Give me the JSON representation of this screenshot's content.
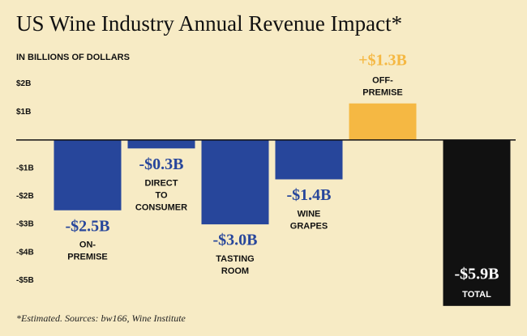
{
  "chart_data": {
    "type": "bar",
    "title": "US Wine Industry Annual Revenue Impact*",
    "subtitle": "IN BILLIONS OF DOLLARS",
    "footnote": "*Estimated. Sources: bw166, Wine Institute",
    "categories": [
      "ON-PREMISE",
      "DIRECT TO CONSUMER",
      "TASTING ROOM",
      "WINE GRAPES",
      "OFF-PREMISE",
      "TOTAL"
    ],
    "values": [
      -2.5,
      -0.3,
      -3.0,
      -1.4,
      1.3,
      -5.9
    ],
    "value_labels": [
      "-$2.5B",
      "-$0.3B",
      "-$3.0B",
      "-$1.4B",
      "+$1.3B",
      "-$5.9B"
    ],
    "colors": [
      "#27469b",
      "#27469b",
      "#27469b",
      "#27469b",
      "#f5b843",
      "#111111"
    ],
    "ylim": [
      -5.3,
      2.3
    ],
    "yticks": [
      {
        "value": 2,
        "label": "$2B"
      },
      {
        "value": 1,
        "label": "$1B"
      },
      {
        "value": -1,
        "label": "-$1B"
      },
      {
        "value": -2,
        "label": "-$2B"
      },
      {
        "value": -3,
        "label": "-$3B"
      },
      {
        "value": -4,
        "label": "-$4B"
      },
      {
        "value": -5,
        "label": "-$5B"
      }
    ]
  }
}
